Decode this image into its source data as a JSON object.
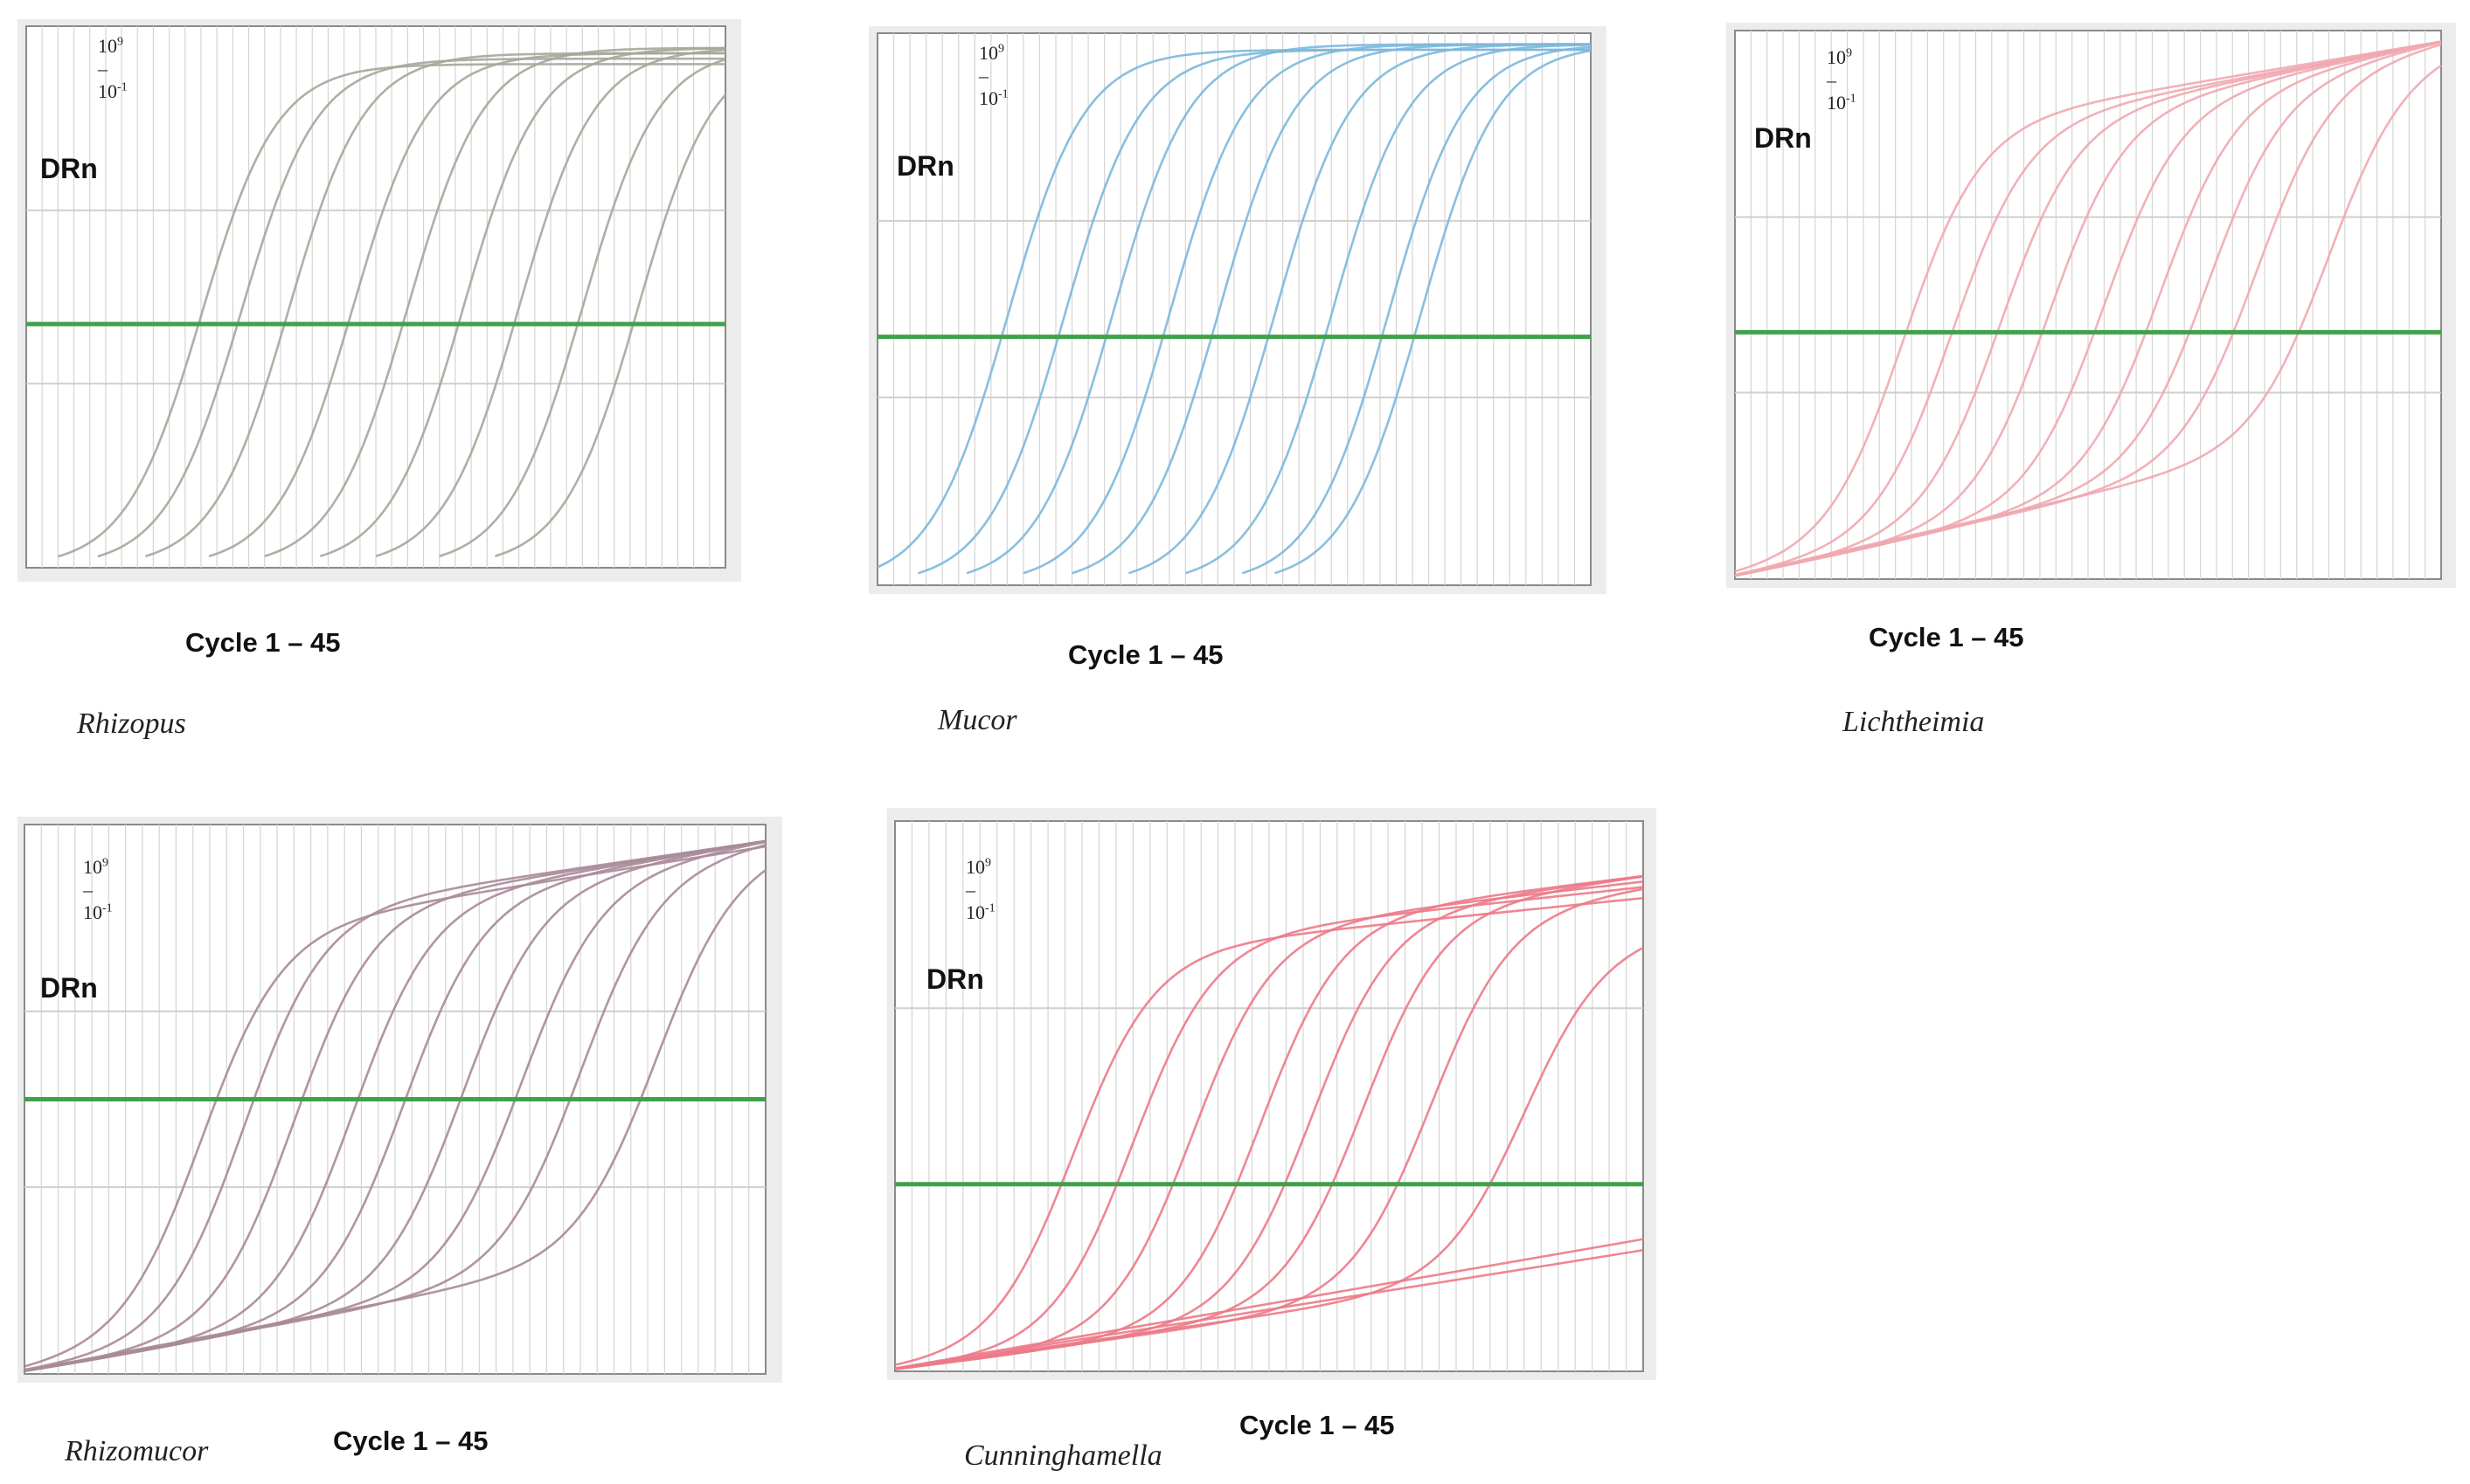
{
  "chart_data": [
    {
      "type": "line",
      "organism": "Rhizopus",
      "range_base": "10",
      "range_exp_hi": "9",
      "range_mid": " – 10",
      "range_exp_lo": "-1",
      "ylabel": "DRn",
      "xlabel": "Cycle 1 – 45",
      "xlim": [
        1,
        45
      ],
      "threshold": 0.45,
      "colors": {
        "curve": "#a6a69a",
        "threshold": "#3fa14a",
        "grid": "#d4d4d4",
        "frame": "#8a8a8a"
      },
      "series": [
        {
          "ct": 10.5,
          "plateau": 0.93,
          "base": 0.0
        },
        {
          "ct": 13.0,
          "plateau": 0.94,
          "base": 0.0
        },
        {
          "ct": 16.0,
          "plateau": 0.95,
          "base": 0.0
        },
        {
          "ct": 20.0,
          "plateau": 0.95,
          "base": 0.0
        },
        {
          "ct": 23.5,
          "plateau": 0.96,
          "base": 0.0
        },
        {
          "ct": 27.0,
          "plateau": 0.96,
          "base": 0.0
        },
        {
          "ct": 30.5,
          "plateau": 0.96,
          "base": 0.0
        },
        {
          "ct": 34.5,
          "plateau": 0.96,
          "base": 0.0
        },
        {
          "ct": 38.0,
          "plateau": 0.96,
          "base": 0.0
        }
      ]
    },
    {
      "type": "line",
      "organism": "Mucor",
      "range_base": "10",
      "range_exp_hi": "9",
      "range_mid": " – 10",
      "range_exp_lo": "-1",
      "ylabel": "DRn",
      "xlabel": "Cycle 1 – 45",
      "xlim": [
        1,
        45
      ],
      "threshold": 0.45,
      "colors": {
        "curve": "#7cb8dc",
        "threshold": "#3fa14a",
        "grid": "#d4d4d4",
        "frame": "#8a8a8a"
      },
      "series": [
        {
          "ct": 7.5,
          "plateau": 0.97,
          "base": 0.0
        },
        {
          "ct": 11.0,
          "plateau": 0.97,
          "base": 0.0
        },
        {
          "ct": 14.0,
          "plateau": 0.98,
          "base": 0.0
        },
        {
          "ct": 17.5,
          "plateau": 0.98,
          "base": 0.0
        },
        {
          "ct": 20.5,
          "plateau": 0.98,
          "base": 0.0
        },
        {
          "ct": 24.0,
          "plateau": 0.98,
          "base": 0.0
        },
        {
          "ct": 27.5,
          "plateau": 0.98,
          "base": 0.0
        },
        {
          "ct": 31.0,
          "plateau": 0.98,
          "base": 0.0
        },
        {
          "ct": 33.0,
          "plateau": 0.98,
          "base": 0.0
        }
      ]
    },
    {
      "type": "line",
      "organism": "Lichtheimia",
      "range_base": "10",
      "range_exp_hi": "9",
      "range_mid": " – 10",
      "range_exp_lo": "-1",
      "ylabel": "DRn",
      "xlabel": "Cycle 1 – 45",
      "xlim": [
        1,
        45
      ],
      "threshold": 0.45,
      "colors": {
        "curve": "#f0a8b0",
        "threshold": "#3fa14a",
        "grid": "#d4d4d4",
        "frame": "#8a8a8a"
      },
      "series": [
        {
          "ct": 10.0,
          "plateau": 0.98,
          "base": 0.22
        },
        {
          "ct": 13.0,
          "plateau": 0.98,
          "base": 0.24
        },
        {
          "ct": 16.0,
          "plateau": 0.98,
          "base": 0.25
        },
        {
          "ct": 19.0,
          "plateau": 0.98,
          "base": 0.26
        },
        {
          "ct": 22.5,
          "plateau": 0.98,
          "base": 0.27
        },
        {
          "ct": 26.0,
          "plateau": 0.98,
          "base": 0.28
        },
        {
          "ct": 29.0,
          "plateau": 0.98,
          "base": 0.29
        },
        {
          "ct": 32.0,
          "plateau": 0.98,
          "base": 0.29
        },
        {
          "ct": 36.5,
          "plateau": 0.97,
          "base": 0.3
        }
      ]
    },
    {
      "type": "line",
      "organism": "Rhizomucor",
      "range_base": "10",
      "range_exp_hi": "9",
      "range_mid": " – 10",
      "range_exp_lo": "-1",
      "ylabel": "DRn",
      "xlabel": "Cycle 1 – 45",
      "xlim": [
        1,
        45
      ],
      "threshold": 0.5,
      "colors": {
        "curve": "#a88a98",
        "threshold": "#3fa14a",
        "grid": "#d4d4d4",
        "frame": "#8a8a8a"
      },
      "series": [
        {
          "ct": 10.0,
          "plateau": 0.96,
          "base": 0.22
        },
        {
          "ct": 12.5,
          "plateau": 0.97,
          "base": 0.2
        },
        {
          "ct": 15.5,
          "plateau": 0.97,
          "base": 0.21
        },
        {
          "ct": 19.0,
          "plateau": 0.97,
          "base": 0.22
        },
        {
          "ct": 22.0,
          "plateau": 0.97,
          "base": 0.23
        },
        {
          "ct": 25.5,
          "plateau": 0.97,
          "base": 0.24
        },
        {
          "ct": 29.0,
          "plateau": 0.97,
          "base": 0.25
        },
        {
          "ct": 32.5,
          "plateau": 0.97,
          "base": 0.25
        },
        {
          "ct": 37.0,
          "plateau": 0.96,
          "base": 0.26
        }
      ]
    },
    {
      "type": "line",
      "organism": "Cunninghamella",
      "range_base": "10",
      "range_exp_hi": "9",
      "range_mid": " – 10",
      "range_exp_lo": "-1",
      "ylabel": "DRn",
      "xlabel": "Cycle 1 – 45",
      "xlim": [
        1,
        45
      ],
      "threshold": 0.34,
      "colors": {
        "curve": "#ec7a88",
        "threshold": "#3fa14a",
        "grid": "#d4d4d4",
        "frame": "#8a8a8a"
      },
      "series": [
        {
          "ct": 10.0,
          "plateau": 0.86,
          "base": 0.14
        },
        {
          "ct": 13.5,
          "plateau": 0.88,
          "base": 0.15
        },
        {
          "ct": 17.0,
          "plateau": 0.89,
          "base": 0.16
        },
        {
          "ct": 21.0,
          "plateau": 0.9,
          "base": 0.17
        },
        {
          "ct": 24.0,
          "plateau": 0.9,
          "base": 0.18
        },
        {
          "ct": 27.0,
          "plateau": 0.9,
          "base": 0.19
        },
        {
          "ct": 31.0,
          "plateau": 0.88,
          "base": 0.19
        },
        {
          "ct": 36.5,
          "plateau": 0.8,
          "base": 0.2
        },
        {
          "ct": 60.0,
          "plateau": 0.5,
          "base": 0.24
        },
        {
          "ct": 60.0,
          "plateau": 0.5,
          "base": 0.22
        }
      ]
    }
  ]
}
